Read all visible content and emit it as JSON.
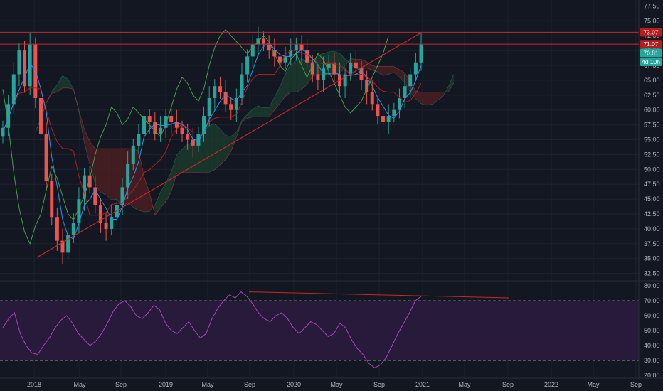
{
  "colors": {
    "background": "#131722",
    "grid": "#1e222d",
    "up": "#26a69a",
    "down": "#ef5350",
    "conversion_line": "#2196f3",
    "base_line": "#b71c1c",
    "lagging_span": "#43a047",
    "cloud_bull": "#1b3a2b",
    "cloud_bear": "#4a1f22",
    "trendline": "#c62828",
    "rsi_line": "#ab47bc",
    "rsi_band": "#2a1b3d",
    "rsi_bounds": "#9598a1"
  },
  "chart_data": [
    {
      "type": "candlestick",
      "x_ticks": [
        "2018",
        "May",
        "Sep",
        "2019",
        "May",
        "Sep",
        "2020",
        "May",
        "Sep",
        "2021",
        "May",
        "Sep",
        "2022",
        "May",
        "Sep"
      ],
      "y_ticks": [
        "32.50",
        "35.00",
        "37.50",
        "40.00",
        "42.50",
        "45.00",
        "47.50",
        "50.00",
        "52.50",
        "55.00",
        "57.50",
        "60.00",
        "62.50",
        "65.00",
        "67.50",
        "70.00",
        "72.50",
        "75.00",
        "77.50"
      ],
      "ylim": [
        31.5,
        78.5
      ],
      "grid": true,
      "price_tags": [
        {
          "label": "73.07",
          "value": 73.07,
          "color": "#b71c1c"
        },
        {
          "label": "71.07",
          "value": 71.07,
          "color": "#b71c1c"
        },
        {
          "label": "70.81",
          "value": 69.6,
          "color": "#26a69a"
        },
        {
          "label": "4d 10h",
          "value": 68.1,
          "color": "#26a69a"
        }
      ],
      "horizontal_lines": [
        73.07,
        71.07
      ],
      "trendlines": [
        {
          "from": [
            "2017-12",
            35.2
          ],
          "to": [
            "2020-12",
            73.0
          ]
        }
      ],
      "series": [
        {
          "kind": "ohlc-weekly",
          "closes": [
            57,
            61,
            66,
            70,
            64,
            71,
            62,
            56,
            48,
            42,
            38,
            36,
            39,
            41,
            45,
            49,
            47,
            44,
            41,
            40,
            42,
            44,
            47,
            51,
            54,
            56,
            59,
            58,
            56,
            57,
            59,
            58,
            57,
            56,
            55,
            54,
            56,
            59,
            62,
            64,
            63,
            61,
            60,
            62,
            66,
            69,
            71,
            72,
            71,
            70,
            69,
            68,
            69,
            70,
            71,
            70,
            68,
            66,
            65,
            67,
            68,
            66,
            64,
            66,
            68,
            67,
            65,
            63,
            61,
            59,
            58,
            59,
            60,
            62,
            64,
            66,
            68,
            71
          ]
        }
      ]
    },
    {
      "type": "line",
      "y_ticks": [
        "20.00",
        "30.00",
        "40.00",
        "50.00",
        "60.00",
        "70.00",
        "80.00"
      ],
      "ylim": [
        19,
        82
      ],
      "bands": [
        30,
        70
      ],
      "series": [
        {
          "kind": "rsi",
          "values": [
            52,
            58,
            62,
            48,
            40,
            35,
            34,
            40,
            45,
            52,
            57,
            60,
            55,
            48,
            44,
            40,
            43,
            48,
            55,
            63,
            68,
            70,
            66,
            60,
            58,
            62,
            67,
            64,
            55,
            50,
            48,
            52,
            56,
            50,
            45,
            48,
            58,
            65,
            70,
            74,
            72,
            76,
            73,
            68,
            62,
            58,
            56,
            60,
            62,
            58,
            52,
            48,
            52,
            56,
            54,
            50,
            46,
            48,
            55,
            52,
            44,
            38,
            34,
            28,
            25,
            27,
            32,
            40,
            48,
            55,
            62,
            70,
            73
          ]
        }
      ],
      "trendlines": [
        {
          "from": [
            "2019-08",
            76
          ],
          "to": [
            "2021-03",
            72
          ]
        }
      ]
    }
  ]
}
